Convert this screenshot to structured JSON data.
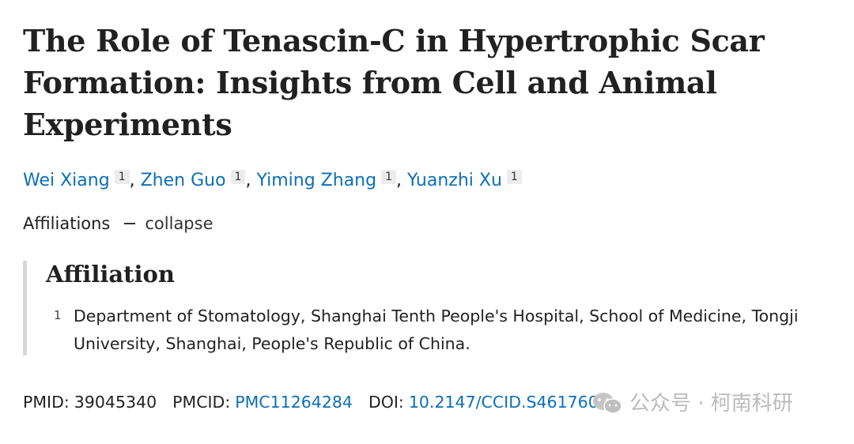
{
  "article": {
    "title": "The Role of Tenascin-C in Hypertrophic Scar Formation: Insights from Cell and Animal Experiments",
    "authors": [
      {
        "name": "Wei Xiang",
        "affil": "1"
      },
      {
        "name": "Zhen Guo",
        "affil": "1"
      },
      {
        "name": "Yiming Zhang",
        "affil": "1"
      },
      {
        "name": "Yuanzhi Xu",
        "affil": "1"
      }
    ],
    "author_separator": ","
  },
  "affiliations": {
    "toggle_label": "Affiliations",
    "collapse_label": "collapse",
    "heading": "Affiliation",
    "items": [
      {
        "number": "1",
        "text": "Department of Stomatology, Shanghai Tenth People's Hospital, School of Medicine, Tongji University, Shanghai, People's Republic of China."
      }
    ]
  },
  "identifiers": {
    "pmid_label": "PMID:",
    "pmid": "39045340",
    "pmcid_label": "PMCID:",
    "pmcid": "PMC11264284",
    "doi_label": "DOI:",
    "doi": "10.2147/CCID.S461760"
  },
  "watermark": {
    "icon": "wechat-icon",
    "text": "公众号 · 柯南科研"
  },
  "colors": {
    "link": "#0b6fb8",
    "text": "#212121",
    "badge_bg": "#ececec",
    "panel_border": "#d6d6d6",
    "watermark": "#b8b8b8"
  }
}
